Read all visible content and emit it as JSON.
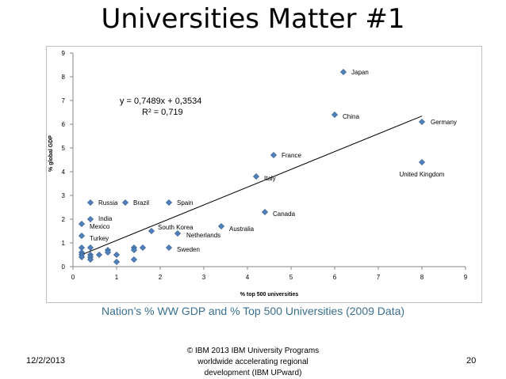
{
  "slide": {
    "title": "Universities Matter #1",
    "caption": "Nation’s % WW GDP and % Top 500 Universities (2009 Data)",
    "date": "12/2/2013",
    "footer_lines": [
      "© IBM 2013 IBM University Programs",
      "worldwide accelerating regional",
      "development (IBM UPward)"
    ],
    "page_number": "20"
  },
  "colors": {
    "marker": "#4f81bd",
    "marker_stroke": "#385d8a",
    "caption": "#3a6f8f",
    "frame": "#bfbfbf"
  },
  "chart_data": {
    "type": "scatter",
    "title": "",
    "xlabel": "% top 500 universities",
    "ylabel": "% global GDP",
    "xlim": [
      0,
      9
    ],
    "ylim": [
      0,
      9
    ],
    "xticks": [
      0,
      1,
      2,
      3,
      4,
      5,
      6,
      7,
      8,
      9
    ],
    "yticks": [
      0,
      1,
      2,
      3,
      4,
      5,
      6,
      7,
      8,
      9
    ],
    "grid": false,
    "legend": "none",
    "trendline": {
      "slope": 0.7489,
      "intercept": 0.3534,
      "equation": "y = 0,7489x + 0,3534",
      "r2_label": "R² = 0,719",
      "x_range": [
        0.2,
        8
      ]
    },
    "points": [
      {
        "x": 6.2,
        "y": 8.2,
        "label": "Japan"
      },
      {
        "x": 6.0,
        "y": 6.4,
        "label": "China"
      },
      {
        "x": 8.0,
        "y": 6.1,
        "label": "Germany"
      },
      {
        "x": 4.6,
        "y": 4.7,
        "label": "France"
      },
      {
        "x": 8.0,
        "y": 4.4,
        "label": "United Kingdom"
      },
      {
        "x": 4.2,
        "y": 3.8,
        "label": "Italy"
      },
      {
        "x": 0.4,
        "y": 2.7,
        "label": "Russia"
      },
      {
        "x": 1.2,
        "y": 2.7,
        "label": "Brazil"
      },
      {
        "x": 2.2,
        "y": 2.7,
        "label": "Spain"
      },
      {
        "x": 4.4,
        "y": 2.3,
        "label": "Canada"
      },
      {
        "x": 0.4,
        "y": 2.0,
        "label": "India"
      },
      {
        "x": 0.2,
        "y": 1.8,
        "label": "Mexico"
      },
      {
        "x": 3.4,
        "y": 1.7,
        "label": "Australia"
      },
      {
        "x": 1.8,
        "y": 1.5,
        "label": "South Korea"
      },
      {
        "x": 2.4,
        "y": 1.4,
        "label": "Netherlands"
      },
      {
        "x": 0.2,
        "y": 1.3,
        "label": "Turkey"
      },
      {
        "x": 2.2,
        "y": 0.8,
        "label": "Sweden"
      },
      {
        "x": 0.2,
        "y": 0.8,
        "label": ""
      },
      {
        "x": 0.4,
        "y": 0.8,
        "label": ""
      },
      {
        "x": 0.2,
        "y": 0.6,
        "label": ""
      },
      {
        "x": 0.2,
        "y": 0.5,
        "label": ""
      },
      {
        "x": 0.2,
        "y": 0.4,
        "label": ""
      },
      {
        "x": 0.4,
        "y": 0.5,
        "label": ""
      },
      {
        "x": 0.4,
        "y": 0.4,
        "label": ""
      },
      {
        "x": 0.4,
        "y": 0.3,
        "label": ""
      },
      {
        "x": 0.6,
        "y": 0.5,
        "label": ""
      },
      {
        "x": 0.8,
        "y": 0.7,
        "label": ""
      },
      {
        "x": 0.8,
        "y": 0.6,
        "label": ""
      },
      {
        "x": 1.0,
        "y": 0.5,
        "label": ""
      },
      {
        "x": 1.0,
        "y": 0.2,
        "label": ""
      },
      {
        "x": 1.4,
        "y": 0.8,
        "label": ""
      },
      {
        "x": 1.4,
        "y": 0.7,
        "label": ""
      },
      {
        "x": 1.4,
        "y": 0.3,
        "label": ""
      },
      {
        "x": 1.6,
        "y": 0.8,
        "label": ""
      }
    ]
  }
}
